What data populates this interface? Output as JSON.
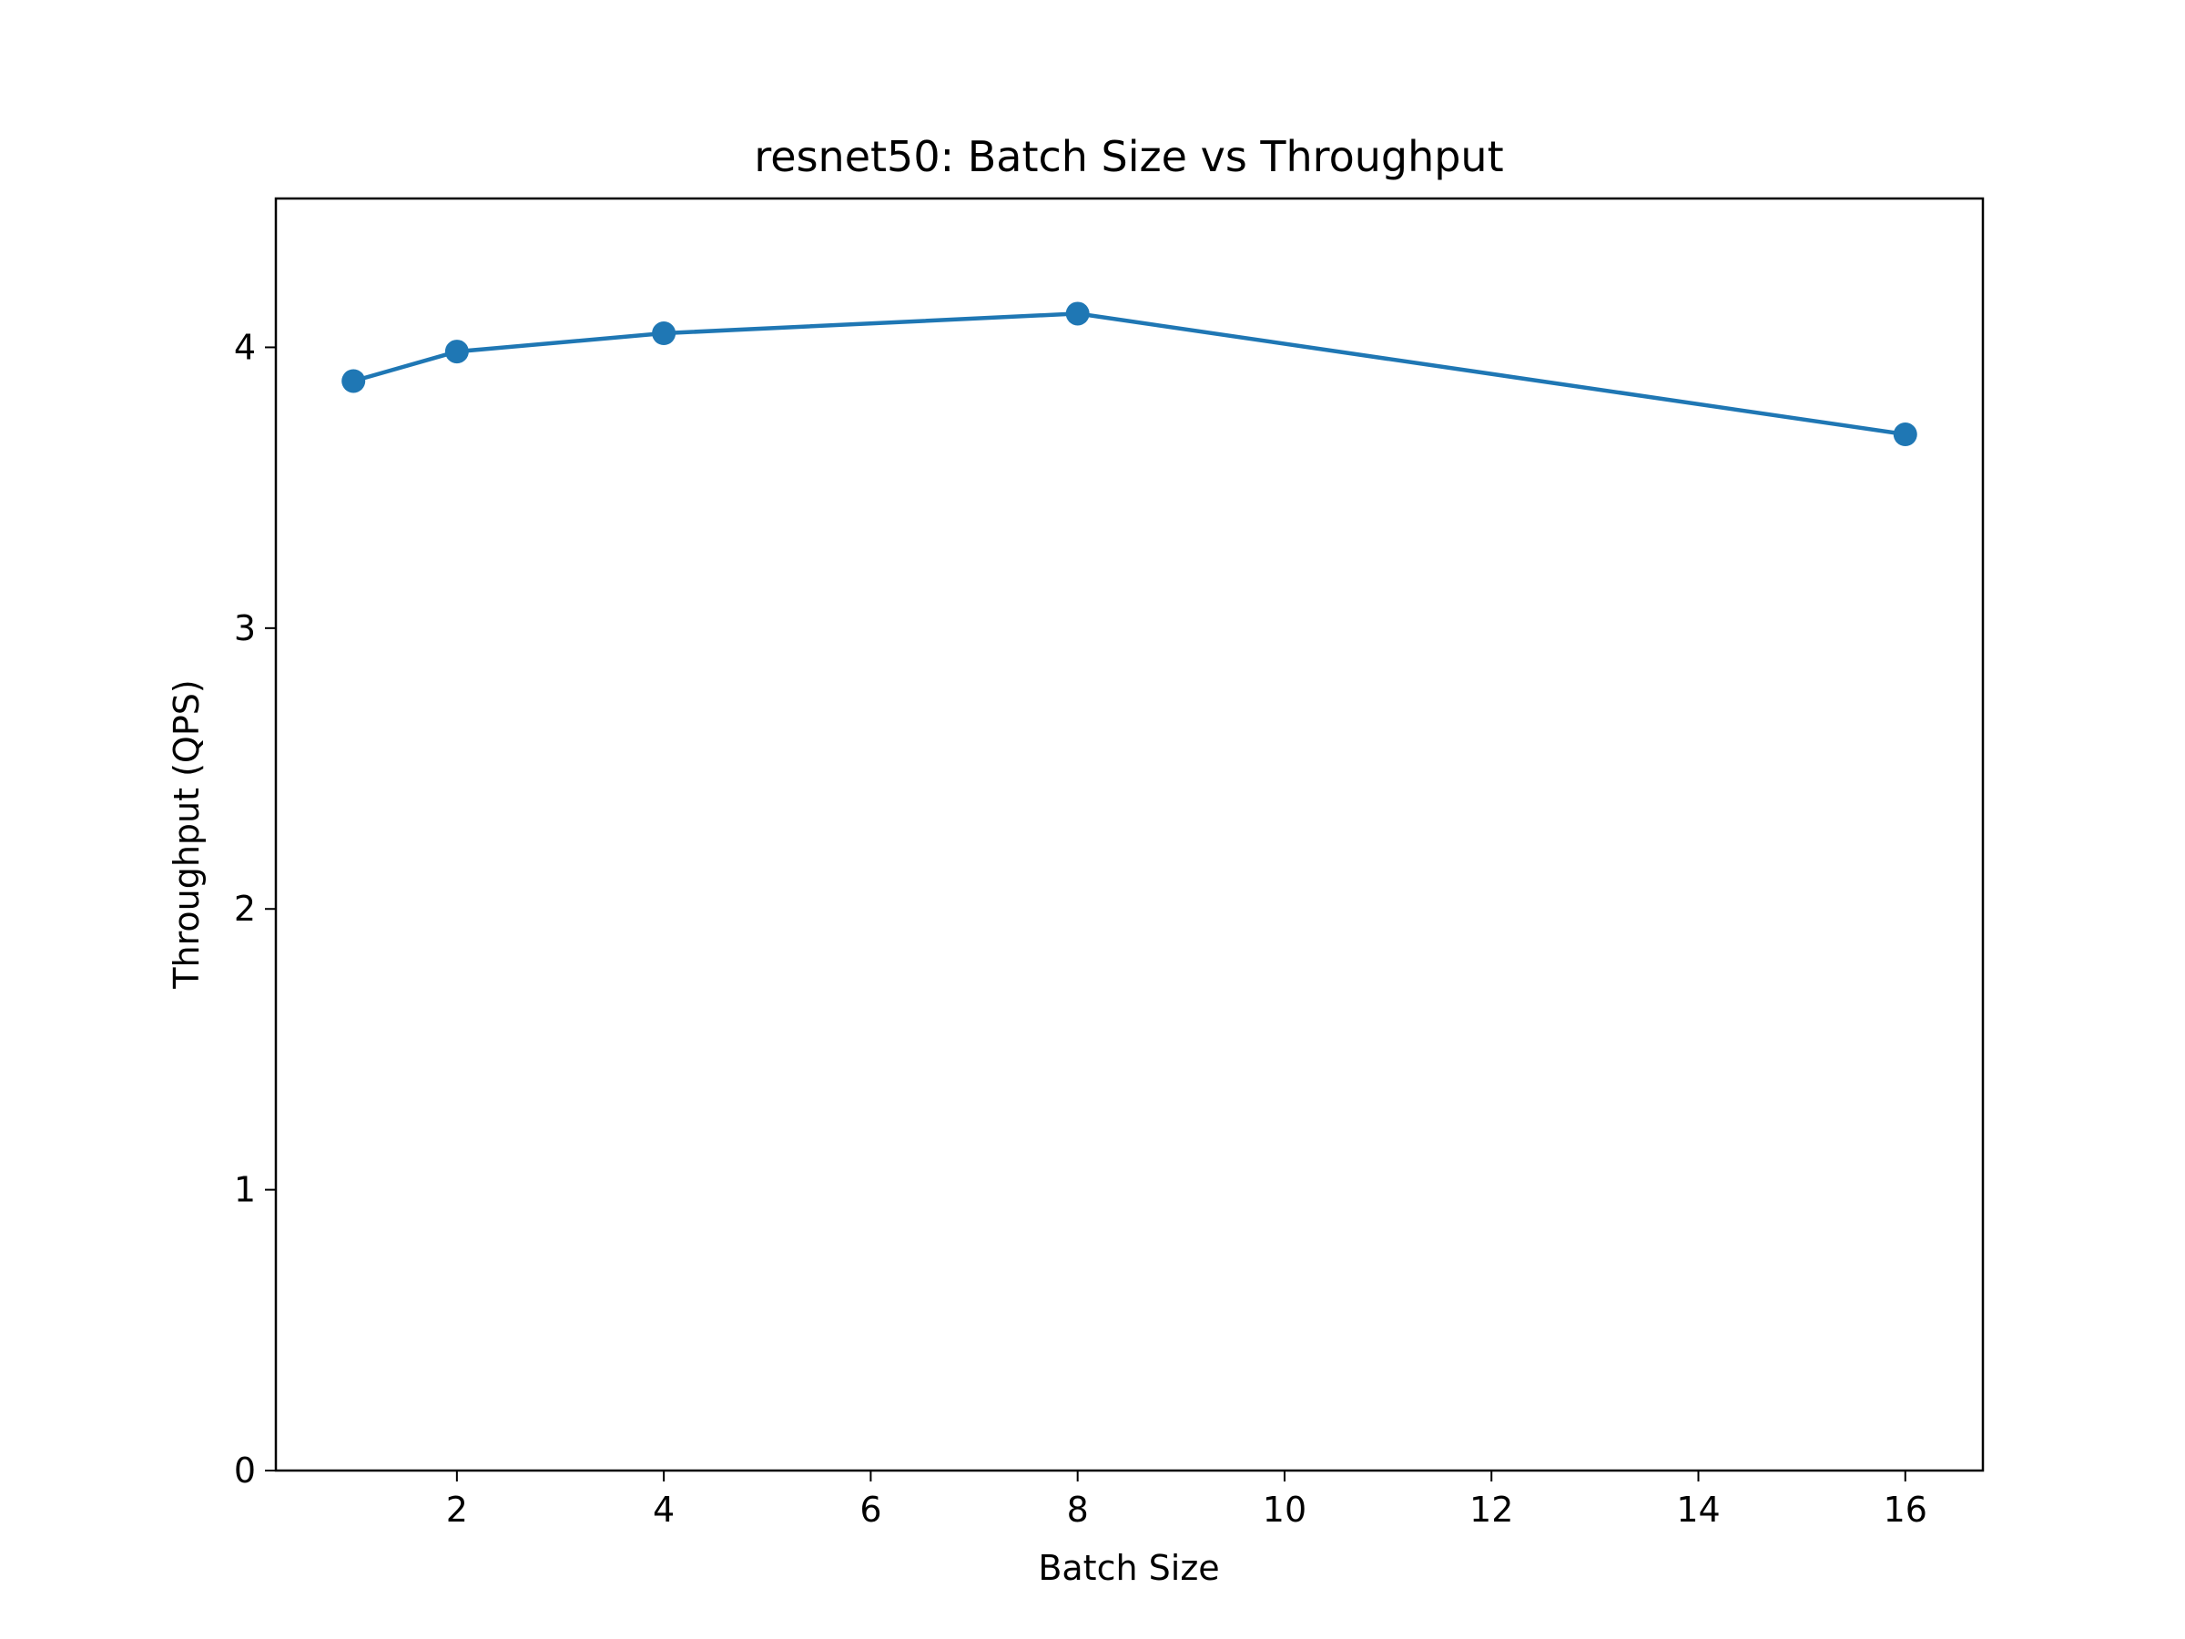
{
  "chart_data": {
    "type": "line",
    "title": "resnet50: Batch Size vs Throughput",
    "xlabel": "Batch Size",
    "ylabel": "Throughput (QPS)",
    "xlim": [
      0.25,
      16.75
    ],
    "ylim": [
      0,
      4.53
    ],
    "xticks": [
      2,
      4,
      6,
      8,
      10,
      12,
      14,
      16
    ],
    "yticks": [
      0,
      1,
      2,
      3,
      4
    ],
    "grid": false,
    "legend": "none",
    "series": [
      {
        "x": [
          1,
          2,
          4,
          8,
          16
        ],
        "values": [
          3.88,
          3.985,
          4.05,
          4.12,
          3.69
        ],
        "color": "#1f77b4",
        "marker": "circle"
      }
    ]
  }
}
